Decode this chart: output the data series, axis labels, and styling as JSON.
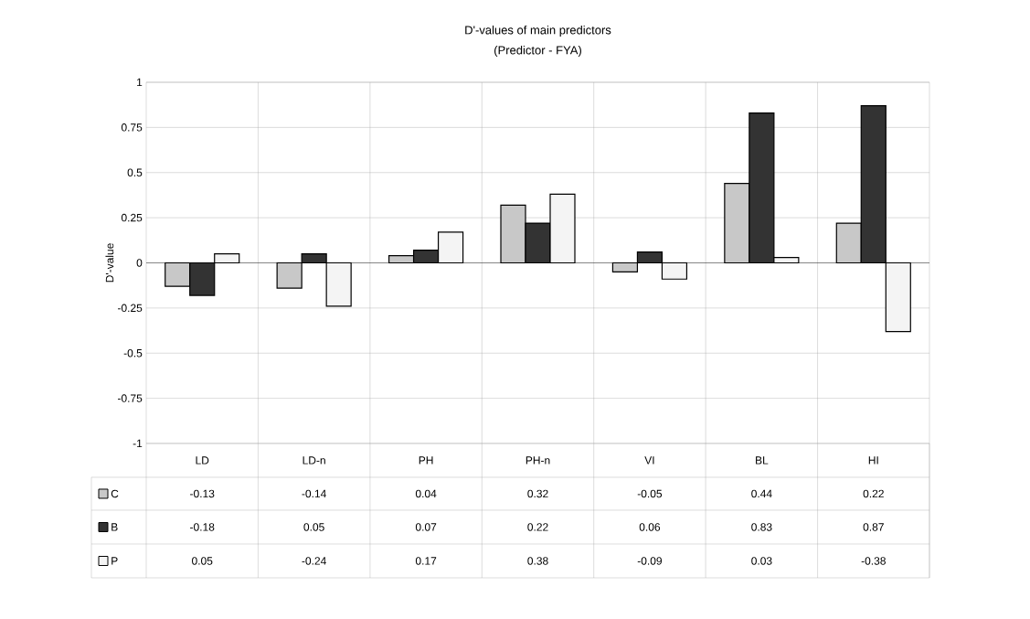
{
  "chart_data": {
    "type": "bar",
    "title": "D'-values of main predictors",
    "subtitle": "(Predictor - FYA)",
    "ylabel": "D'-value",
    "categories": [
      "LD",
      "LD-n",
      "PH",
      "PH-n",
      "VI",
      "BL",
      "HI"
    ],
    "series": [
      {
        "name": "C",
        "color": "#c8c8c8",
        "values": [
          -0.13,
          -0.14,
          0.04,
          0.32,
          -0.05,
          0.44,
          0.22
        ]
      },
      {
        "name": "B",
        "color": "#333333",
        "values": [
          -0.18,
          0.05,
          0.07,
          0.22,
          0.06,
          0.83,
          0.87
        ]
      },
      {
        "name": "P",
        "color": "#f4f4f4",
        "values": [
          0.05,
          -0.24,
          0.17,
          0.38,
          -0.09,
          0.03,
          -0.38
        ]
      }
    ],
    "ylim": [
      -1,
      1
    ],
    "yticks": [
      -1,
      -0.75,
      -0.5,
      -0.25,
      0,
      0.25,
      0.5,
      0.75,
      1
    ],
    "grid": true,
    "legend": "bottom",
    "data_labels": true
  }
}
